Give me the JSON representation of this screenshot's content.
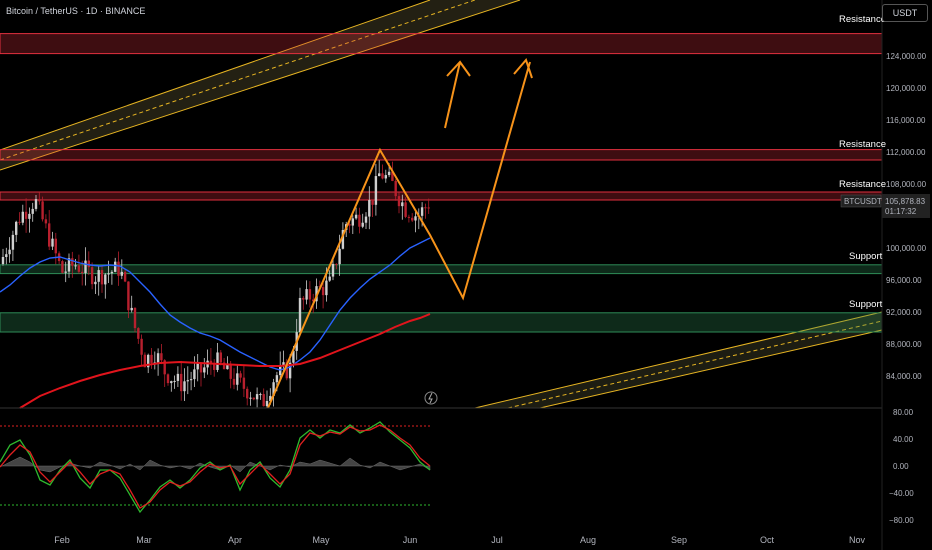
{
  "header": {
    "title": "Bitcoin / TetherUS · 1D · BINANCE",
    "currency": "USDT"
  },
  "price_tag": {
    "symbol": "BTCUSDT",
    "price": "105,878.83",
    "countdown": "01:17:32"
  },
  "zone_labels": {
    "resistance_top": "Resistance",
    "resistance_mid": "Resistance",
    "resistance_low": "Resistance",
    "support_upper": "Support",
    "support_lower": "Support"
  },
  "price_axis_ticks": [
    "124,000.00",
    "120,000.00",
    "116,000.00",
    "112,000.00",
    "108,000.00",
    "100,000.00",
    "96,000.00",
    "92,000.00",
    "88,000.00",
    "84,000.00"
  ],
  "osc_axis_ticks": [
    "80.00",
    "40.00",
    "0.00",
    "−40.00",
    "−80.00"
  ],
  "month_ticks": [
    "Feb",
    "Mar",
    "Apr",
    "May",
    "Jun",
    "Jul",
    "Aug",
    "Sep",
    "Oct",
    "Nov"
  ],
  "colors": {
    "background": "#000000",
    "up_candle": "#cfcfcf",
    "down_candle": "#b8202e",
    "resistance_zone": "#e0303e",
    "support_zone": "#2e8b57",
    "channel": "#e6b422",
    "ema_fast": "#2962ff",
    "ema_slow": "#e1141c",
    "projection": "#f7931a",
    "osc_fast": "#2eb82e",
    "osc_slow": "#e02020"
  },
  "chart_data": {
    "type": "candlestick",
    "title": "Bitcoin / TetherUS · 1D · BINANCE",
    "y_unit": "USDT",
    "ylim": [
      80500,
      127000
    ],
    "current_price": 105878.83,
    "zones": [
      {
        "kind": "resistance",
        "low": 124300,
        "high": 126800
      },
      {
        "kind": "resistance",
        "low": 111000,
        "high": 112300
      },
      {
        "kind": "resistance",
        "low": 106000,
        "high": 107000
      },
      {
        "kind": "support",
        "low": 96800,
        "high": 97900
      },
      {
        "kind": "support",
        "low": 89500,
        "high": 91900
      }
    ],
    "candles_approx_monthly_closes": [
      {
        "month": "Feb",
        "close": 100500
      },
      {
        "month": "Mar",
        "close": 86500
      },
      {
        "month": "Apr",
        "close": 82500
      },
      {
        "month": "May",
        "close": 96000
      },
      {
        "month": "Jun",
        "close": 105878.83
      }
    ],
    "oscillator": {
      "ylim": [
        -80,
        80
      ],
      "overbought": 60,
      "oversold": -60
    },
    "grid": false
  }
}
